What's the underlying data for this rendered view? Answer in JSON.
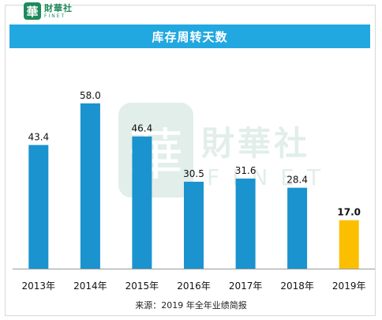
{
  "logo": {
    "seal": "華",
    "cn": "財華社",
    "en": "FINET"
  },
  "watermark": {
    "seal": "華",
    "cn": "財華社",
    "en": "FINET"
  },
  "chart_data": {
    "type": "bar",
    "title": "库存周转天数",
    "categories": [
      "2013年",
      "2014年",
      "2015年",
      "2016年",
      "2017年",
      "2018年",
      "2019年"
    ],
    "values": [
      43.4,
      58.0,
      46.4,
      30.5,
      31.6,
      28.4,
      17.0
    ],
    "value_labels": [
      "43.4",
      "58.0",
      "46.4",
      "30.5",
      "31.6",
      "28.4",
      "17.0"
    ],
    "bar_colors": [
      "#1a93cf",
      "#1a93cf",
      "#1a93cf",
      "#1a93cf",
      "#1a93cf",
      "#1a93cf",
      "#fcbf00"
    ],
    "highlight_color": "#fcbf00",
    "bar_color": "#1a93cf",
    "ylim": [
      0,
      66
    ],
    "grid": false,
    "legend": "none"
  },
  "source": "来源：2019 年全年业绩简报"
}
